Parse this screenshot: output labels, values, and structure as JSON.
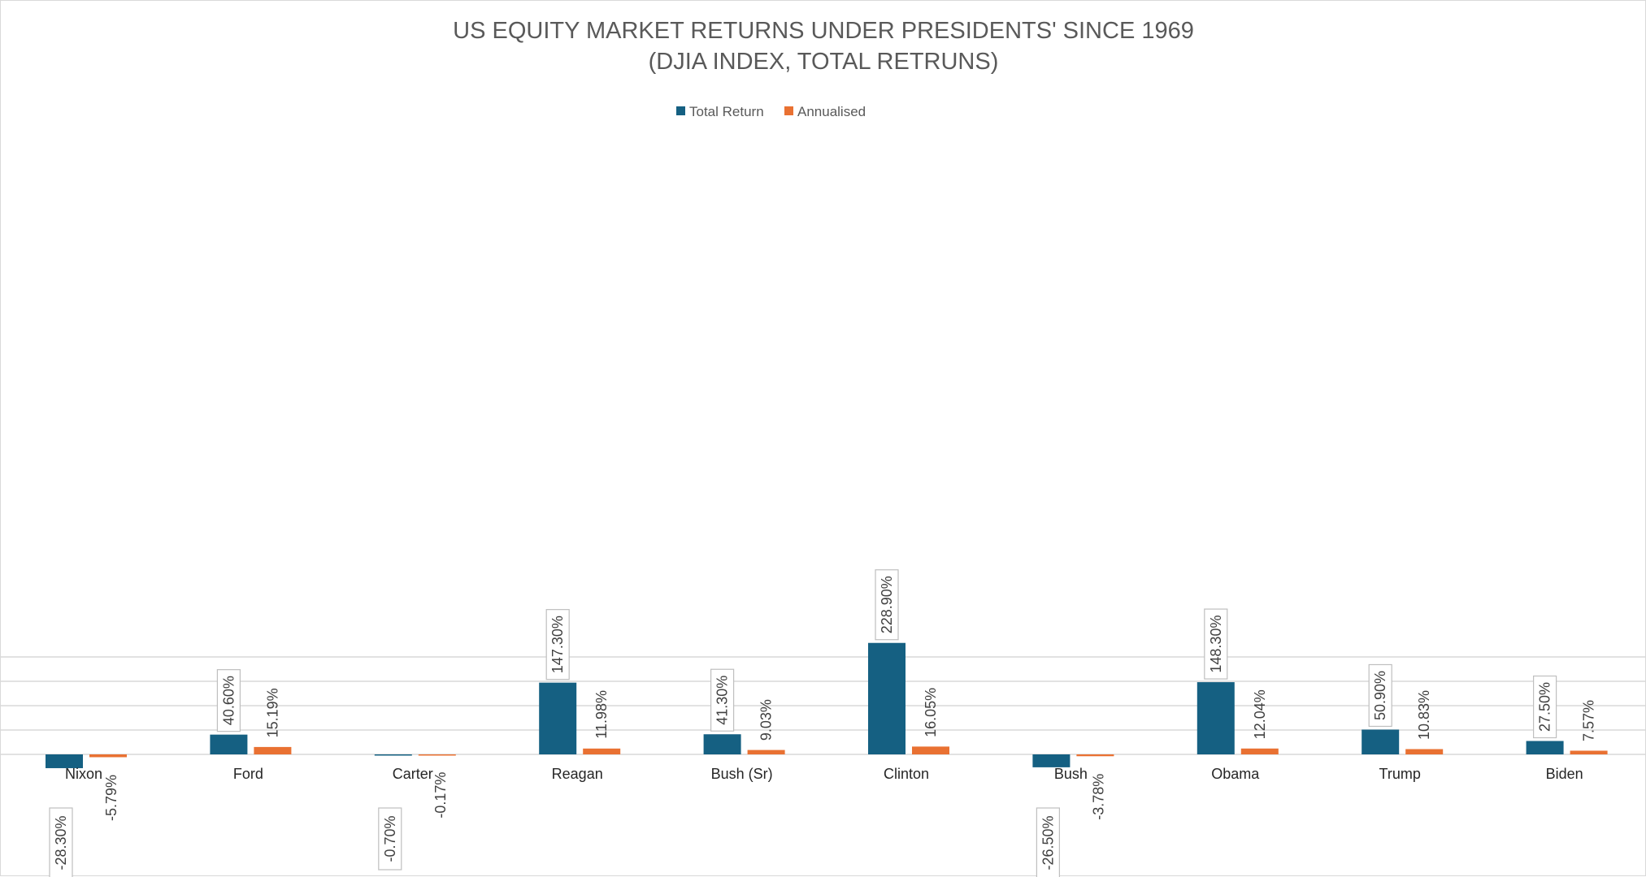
{
  "chart_data": {
    "type": "bar",
    "title": "US EQUITY MARKET RETURNS UNDER PRESIDENTS' SINCE 1969",
    "subtitle": "(DJIA INDEX, TOTAL RETRUNS)",
    "categories": [
      "Nixon",
      "Ford",
      "Carter",
      "Reagan",
      "Bush (Sr)",
      "Clinton",
      "Bush",
      "Obama",
      "Trump",
      "Biden"
    ],
    "series": [
      {
        "name": "Total Return",
        "color": "#156082",
        "values": [
          -28.3,
          40.6,
          -0.7,
          147.3,
          41.3,
          228.9,
          -26.5,
          148.3,
          50.9,
          27.5
        ],
        "labels": [
          "-28.30%",
          "40.60%",
          "-0.70%",
          "147.30%",
          "41.30%",
          "228.90%",
          "-26.50%",
          "148.30%",
          "50.90%",
          "27.50%"
        ]
      },
      {
        "name": "Annualised",
        "color": "#E97132",
        "values": [
          -5.79,
          15.19,
          -0.17,
          11.98,
          9.03,
          16.05,
          -3.78,
          12.04,
          10.83,
          7.57
        ],
        "labels": [
          "-5.79%",
          "15.19%",
          "-0.17%",
          "11.98%",
          "9.03%",
          "16.05%",
          "-3.78%",
          "12.04%",
          "10.83%",
          "7.57%"
        ]
      }
    ],
    "ylim": [
      -50,
      250
    ],
    "gridlines": true,
    "y_axis_labels_visible": false,
    "legend_position": "top"
  }
}
